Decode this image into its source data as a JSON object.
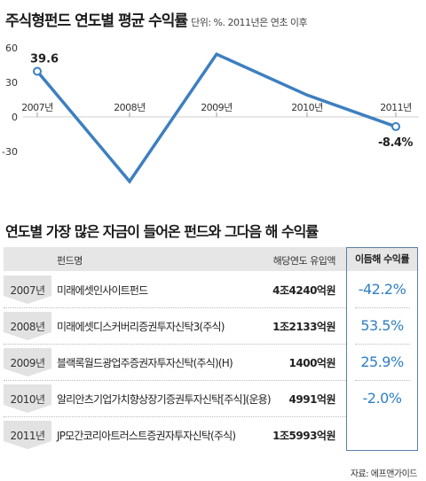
{
  "chart_data": {
    "type": "line",
    "title": "주식형펀드 연도별 평균 수익률",
    "subtitle": "단위: %. 2011년은 연초 이후",
    "x": [
      "2007년",
      "2008년",
      "2009년",
      "2010년",
      "2011년"
    ],
    "values": [
      39.6,
      -56.0,
      54.5,
      19.0,
      -8.4
    ],
    "ylim": [
      -30,
      60
    ],
    "yticks": [
      "60",
      "30",
      "0",
      "-30"
    ],
    "data_labels": {
      "first": "39.6",
      "last": "-8.4%"
    },
    "line_color": "#3d7fc0",
    "grid": false
  },
  "table": {
    "title": "연도별 가장 많은 자금이 들어온 펀드와 그다음 해 수익률",
    "headers": {
      "fund": "펀드명",
      "inflow": "해당연도 유입액",
      "return": "이듬해 수익률"
    },
    "rows": [
      {
        "year": "2007년",
        "fund": "미래에셋인사이트펀드",
        "inflow": "4조4240억원",
        "return": "-42.2%"
      },
      {
        "year": "2008년",
        "fund": "미래에셋디스커버리증권투자신탁3(주식)",
        "inflow": "1조2133억원",
        "return": "53.5%"
      },
      {
        "year": "2009년",
        "fund": "블랙록월드광업주증권자투자신탁(주식)(H)",
        "inflow": "1400억원",
        "return": "25.9%"
      },
      {
        "year": "2010년",
        "fund": "알리안츠기업가치향상장기증권투자신탁[주식](운용)",
        "inflow": "4991억원",
        "return": "-2.0%"
      },
      {
        "year": "2011년",
        "fund": "JP모간코리아트러스트증권자투자신탁(주식)",
        "inflow": "1조5993억원",
        "return": ""
      }
    ]
  },
  "source": "자료: 에프앤가이드",
  "colors": {
    "accent": "#3d7fc0",
    "return_text": "#2f7fc4",
    "box_border": "#5a7fa6"
  }
}
